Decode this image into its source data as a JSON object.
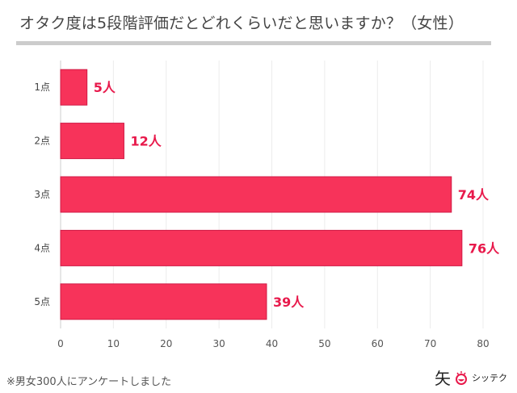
{
  "chart_data": {
    "type": "bar",
    "orientation": "horizontal",
    "title": "オタク度は5段階評価だとどれくらいだと思いますか？（女性）",
    "categories": [
      "1点",
      "2点",
      "3点",
      "4点",
      "5点"
    ],
    "values": [
      5,
      12,
      74,
      76,
      39
    ],
    "data_labels": [
      "5人",
      "12人",
      "74人",
      "76人",
      "39人"
    ],
    "xlim": [
      0,
      80
    ],
    "xticks": [
      0,
      10,
      20,
      30,
      40,
      50,
      60,
      70,
      80
    ],
    "grid": true,
    "bar_color": "#f7335a",
    "label_color": "#e8194b"
  },
  "footnote": "※男女300人にアンケートしました",
  "logo": {
    "mark": "矢",
    "text": "シッテク"
  }
}
